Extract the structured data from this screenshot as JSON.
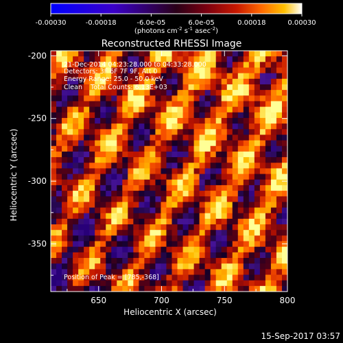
{
  "colorbar": {
    "ticks": [
      "-0.00030",
      "-0.00018",
      "-6.0e-05",
      "6.0e-05",
      "0.00018",
      "0.00030"
    ],
    "tick_values": [
      -0.0003,
      -0.00018,
      -6e-05,
      6e-05,
      0.00018,
      0.0003
    ],
    "range": [
      -0.0003,
      0.0003
    ],
    "unit_label": "(photons cm",
    "unit_sup1": "-2",
    "unit_mid": " s",
    "unit_sup2": "-1",
    "unit_mid2": " asec",
    "unit_sup3": "-2",
    "unit_end": ")"
  },
  "chart_data": {
    "type": "heatmap",
    "title": "Reconstructed RHESSI Image",
    "xlabel": "Heliocentric X (arcsec)",
    "ylabel": "Heliocentric Y (arcsec)",
    "xlim": [
      612,
      800
    ],
    "ylim": [
      -388,
      -196
    ],
    "xticks": [
      650,
      700,
      750,
      800
    ],
    "yticks": [
      -200,
      -250,
      -300,
      -350
    ],
    "colormap": "red-temperature with blue negative",
    "annotations": [
      "21-Dec-2014 04:23:28.000 to 04:33:28.000",
      "Detectors: 3F 6F 7F 9F, Att 0",
      "Energy Range: 25.0 - 50.0 keV",
      "Clean    Total Counts: 6.13E+03",
      "Position of Peak = [785,-368]"
    ],
    "peak": [
      785,
      -368
    ],
    "timestamp": "15-Sep-2017 03:57"
  },
  "colors": {
    "background": "#000000",
    "text": "#ffffff"
  }
}
